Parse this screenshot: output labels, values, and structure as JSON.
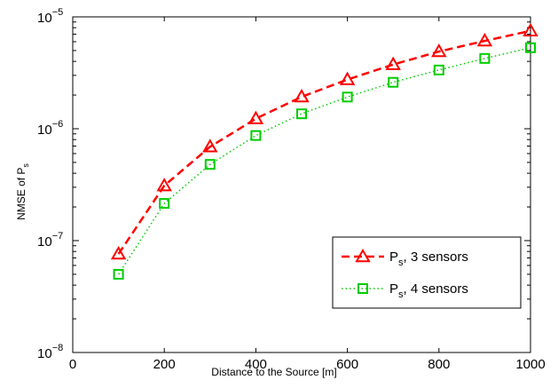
{
  "chart_data": {
    "type": "line",
    "x_scale": "linear",
    "y_scale": "log",
    "xlim": [
      0,
      1000
    ],
    "ylim": [
      1e-08,
      1e-05
    ],
    "xticks": [
      0,
      200,
      400,
      600,
      800,
      1000
    ],
    "xtick_labels": [
      "0",
      "200",
      "400",
      "600",
      "800",
      "1000"
    ],
    "yticks": [
      {
        "value": 1e-08,
        "base": "10",
        "exp": "−8"
      },
      {
        "value": 1e-07,
        "base": "10",
        "exp": "−7"
      },
      {
        "value": 1e-06,
        "base": "10",
        "exp": "−6"
      },
      {
        "value": 1e-05,
        "base": "10",
        "exp": "−5"
      }
    ],
    "xlabel": "Distance to the Source [m]",
    "ylabel": {
      "main": "NMSE of P",
      "sub": "s"
    },
    "grid": false,
    "legend_position": "lower-right",
    "x": [
      100,
      200,
      300,
      400,
      500,
      600,
      700,
      800,
      900,
      1000
    ],
    "series": [
      {
        "label_main": "P",
        "label_sub": "s",
        "label_rest": ", 3 sensors",
        "color": "#ff0000",
        "line_style": "dashed",
        "marker": "triangle",
        "values": [
          7.6e-08,
          3.1e-07,
          6.9e-07,
          1.23e-06,
          1.93e-06,
          2.75e-06,
          3.75e-06,
          4.9e-06,
          6.1e-06,
          7.5e-06
        ]
      },
      {
        "label_main": "P",
        "label_sub": "s",
        "label_rest": ", 4 sensors",
        "color": "#00cc00",
        "line_style": "dotted",
        "marker": "square",
        "values": [
          5e-08,
          2.15e-07,
          4.8e-07,
          8.7e-07,
          1.36e-06,
          1.92e-06,
          2.6e-06,
          3.35e-06,
          4.25e-06,
          5.3e-06
        ]
      }
    ]
  }
}
